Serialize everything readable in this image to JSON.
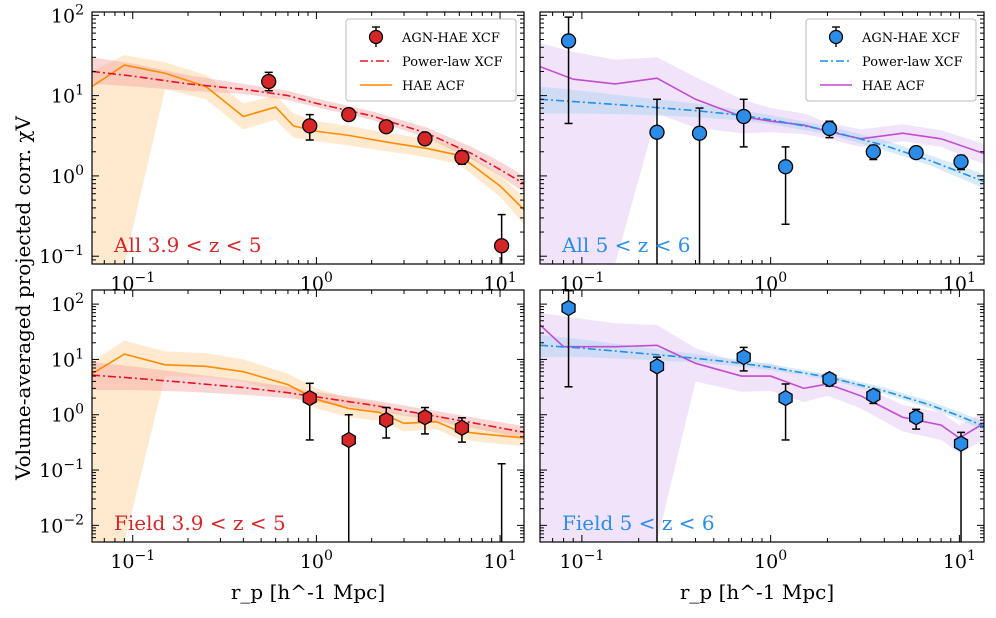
{
  "figure": {
    "ylabel": "Volume-averaged projected corr. χV",
    "xlabel": "r_p [h^-1 Mpc]"
  },
  "colors": {
    "red_points": "#d62728",
    "red_line": "#e8102a",
    "red_band": "#f4a6a0",
    "orange_line": "#ff8c00",
    "orange_band": "#ffd9a8",
    "blue_points": "#2b8de8",
    "blue_line": "#1f8fea",
    "blue_band": "#a9d3f2",
    "purple_line": "#c24bd2",
    "purple_band": "#e6cdf5"
  },
  "chart_data": [
    {
      "type": "scatter",
      "panel": "All 3.9<z<5",
      "label_prefix": "All",
      "label_range": "3.9 < z < 5",
      "xscale": "log",
      "yscale": "log",
      "xlim": [
        0.06,
        13.5
      ],
      "ylim": [
        0.08,
        110
      ],
      "xticks": [
        0.1,
        1,
        10
      ],
      "yticks": [
        0.1,
        1,
        10,
        100
      ],
      "legend": {
        "placement": "top-right",
        "entries": [
          "AGN-HAE XCF",
          "Power-law XCF",
          "HAE ACF"
        ]
      },
      "series": [
        {
          "name": "AGN-HAE XCF",
          "kind": "points",
          "marker": "circle",
          "x": [
            0.55,
            0.92,
            1.5,
            2.4,
            3.9,
            6.2,
            10.2
          ],
          "y": [
            15,
            4.2,
            5.8,
            4.1,
            2.9,
            1.7,
            0.135
          ],
          "ylo": [
            11.5,
            2.8,
            5.0,
            3.6,
            2.5,
            1.4,
            0.08
          ],
          "yhi": [
            19.5,
            5.8,
            6.8,
            4.7,
            3.4,
            2.05,
            0.33
          ]
        },
        {
          "name": "Power-law XCF",
          "kind": "line",
          "style": "dashdot",
          "x": [
            0.06,
            0.1,
            0.2,
            0.4,
            0.7,
            1,
            2,
            4,
            7,
            10,
            13.5
          ],
          "y": [
            20,
            17.5,
            14,
            12,
            10,
            8,
            5.6,
            3.4,
            1.9,
            1.2,
            0.8
          ],
          "band_lo": [
            14,
            13,
            11.5,
            10.5,
            8.8,
            7.2,
            5,
            3,
            1.6,
            1.0,
            0.62
          ],
          "band_hi": [
            30,
            25,
            18,
            14,
            11.5,
            9.2,
            6.4,
            4,
            2.3,
            1.5,
            1.0
          ]
        },
        {
          "name": "HAE ACF",
          "kind": "line",
          "style": "solid",
          "x": [
            0.06,
            0.09,
            0.15,
            0.25,
            0.4,
            0.6,
            0.75,
            1,
            1.5,
            2.5,
            4,
            6,
            10,
            13.5
          ],
          "y": [
            13,
            24,
            19,
            13,
            5.5,
            7.2,
            4.2,
            3.6,
            3.2,
            2.6,
            2.2,
            1.8,
            0.75,
            0.38
          ],
          "band_lo": [
            0.08,
            0.08,
            12,
            9,
            3.8,
            5,
            3.0,
            2.7,
            2.4,
            2.0,
            1.7,
            1.4,
            0.55,
            0.25
          ],
          "band_hi": [
            20,
            32,
            26,
            18,
            8,
            10,
            6,
            4.8,
            4.2,
            3.4,
            2.9,
            2.3,
            1.0,
            0.55
          ]
        }
      ]
    },
    {
      "type": "scatter",
      "panel": "All 5<z<6",
      "label_prefix": "All",
      "label_range": "5 < z < 6",
      "xscale": "log",
      "yscale": "log",
      "xlim": [
        0.06,
        13.5
      ],
      "ylim": [
        0.08,
        110
      ],
      "xticks": [
        0.1,
        1,
        10
      ],
      "yticks": [
        0.1,
        1,
        10,
        100
      ],
      "legend": {
        "placement": "top-right",
        "entries": [
          "AGN-HAE XCF",
          "Power-law XCF",
          "HAE ACF"
        ]
      },
      "series": [
        {
          "name": "AGN-HAE XCF",
          "kind": "points",
          "marker": "circle",
          "x": [
            0.085,
            0.25,
            0.42,
            0.72,
            1.2,
            2.05,
            3.5,
            5.9,
            10.2
          ],
          "y": [
            48,
            3.5,
            3.4,
            5.5,
            1.3,
            3.9,
            2.0,
            1.95,
            1.5
          ],
          "ylo": [
            4.5,
            0.08,
            0.08,
            2.3,
            0.25,
            3.0,
            1.6,
            1.7,
            1.2
          ],
          "yhi": [
            95,
            9,
            7,
            9,
            2.3,
            4.8,
            2.4,
            2.2,
            1.8
          ]
        },
        {
          "name": "Power-law XCF",
          "kind": "line",
          "style": "dashdot",
          "x": [
            0.06,
            0.1,
            0.2,
            0.4,
            0.7,
            1,
            2,
            4,
            7,
            10,
            13.5
          ],
          "y": [
            9,
            8.3,
            7.4,
            6.5,
            5.7,
            5,
            3.7,
            2.4,
            1.55,
            1.12,
            0.85
          ],
          "band_lo": [
            6,
            6,
            5.8,
            5.4,
            4.9,
            4.4,
            3.3,
            2.1,
            1.35,
            0.95,
            0.7
          ],
          "band_hi": [
            13,
            11.5,
            9.5,
            8,
            6.6,
            5.7,
            4.2,
            2.8,
            1.8,
            1.35,
            1.05
          ]
        },
        {
          "name": "HAE ACF",
          "kind": "line",
          "style": "solid",
          "x": [
            0.06,
            0.09,
            0.15,
            0.25,
            0.4,
            0.7,
            1,
            1.5,
            2,
            3,
            5,
            8,
            13.5
          ],
          "y": [
            23,
            16,
            14,
            16.5,
            9,
            5.5,
            4.8,
            4.3,
            3.6,
            2.9,
            3.4,
            2.9,
            1.9
          ],
          "band_lo": [
            0.08,
            0.08,
            0.08,
            6,
            4,
            3.4,
            3.5,
            3.3,
            2.9,
            2.3,
            2.7,
            2.3,
            1.4
          ],
          "band_hi": [
            45,
            35,
            28,
            30,
            17,
            9,
            7,
            6,
            4.6,
            3.8,
            4.4,
            3.7,
            2.5
          ]
        }
      ]
    },
    {
      "type": "scatter",
      "panel": "Field 3.9<z<5",
      "label_prefix": "Field",
      "label_range": "3.9 < z < 5",
      "xscale": "log",
      "yscale": "log",
      "xlim": [
        0.06,
        13.5
      ],
      "ylim": [
        0.005,
        180
      ],
      "xticks": [
        0.1,
        1,
        10
      ],
      "yticks": [
        0.01,
        0.1,
        1,
        10,
        100
      ],
      "series": [
        {
          "name": "AGN-HAE XCF",
          "kind": "points",
          "marker": "hexagon",
          "x": [
            0.92,
            1.5,
            2.4,
            3.9,
            6.2,
            10.2
          ],
          "y": [
            2.0,
            0.35,
            0.8,
            0.9,
            0.58,
            0.005
          ],
          "ylo": [
            0.35,
            0.005,
            0.38,
            0.45,
            0.32,
            0.005
          ],
          "yhi": [
            3.7,
            1.0,
            1.35,
            1.35,
            0.88,
            0.13
          ]
        },
        {
          "name": "Power-law XCF",
          "kind": "line",
          "style": "dashdot",
          "x": [
            0.06,
            0.1,
            0.2,
            0.4,
            0.7,
            1,
            2,
            4,
            7,
            10,
            13.5
          ],
          "y": [
            5.2,
            4.6,
            3.8,
            3.1,
            2.5,
            2.1,
            1.5,
            1.0,
            0.72,
            0.58,
            0.48
          ],
          "band_lo": [
            2.8,
            2.8,
            2.6,
            2.3,
            2.0,
            1.7,
            1.2,
            0.82,
            0.58,
            0.46,
            0.37
          ],
          "band_hi": [
            9,
            7.5,
            5.6,
            4.2,
            3.2,
            2.6,
            1.85,
            1.25,
            0.9,
            0.74,
            0.62
          ]
        },
        {
          "name": "HAE ACF",
          "kind": "line",
          "style": "solid",
          "x": [
            0.06,
            0.09,
            0.15,
            0.25,
            0.4,
            0.7,
            1,
            1.5,
            2.2,
            3,
            4.5,
            6,
            8,
            13.5
          ],
          "y": [
            5.5,
            12.5,
            8,
            7.5,
            6,
            3.5,
            1.9,
            1.3,
            1.1,
            0.7,
            0.75,
            0.5,
            0.45,
            0.38
          ],
          "band_lo": [
            0.005,
            0.005,
            5,
            4.8,
            4,
            2.4,
            1.3,
            0.9,
            0.78,
            0.5,
            0.55,
            0.36,
            0.32,
            0.27
          ],
          "band_hi": [
            9,
            22,
            14,
            13,
            10,
            5.5,
            3,
            2,
            1.6,
            1.0,
            1.05,
            0.72,
            0.62,
            0.52
          ]
        }
      ]
    },
    {
      "type": "scatter",
      "panel": "Field 5<z<6",
      "label_prefix": "Field",
      "label_range": "5 < z < 6",
      "xscale": "log",
      "yscale": "log",
      "xlim": [
        0.06,
        13.5
      ],
      "ylim": [
        0.005,
        180
      ],
      "xticks": [
        0.1,
        1,
        10
      ],
      "yticks": [
        0.01,
        0.1,
        1,
        10,
        100
      ],
      "series": [
        {
          "name": "AGN-HAE XCF",
          "kind": "points",
          "marker": "hexagon",
          "x": [
            0.085,
            0.25,
            0.72,
            1.2,
            2.05,
            3.5,
            5.9,
            10.2
          ],
          "y": [
            85,
            7.5,
            11,
            2.0,
            4.4,
            2.2,
            0.9,
            0.3
          ],
          "ylo": [
            3.2,
            0.005,
            6.2,
            0.35,
            3.3,
            1.6,
            0.55,
            0.005
          ],
          "yhi": [
            175,
            11,
            16.5,
            3.6,
            5.6,
            2.8,
            1.25,
            0.48
          ]
        },
        {
          "name": "Power-law XCF",
          "kind": "line",
          "style": "dashdot",
          "x": [
            0.06,
            0.1,
            0.2,
            0.4,
            0.7,
            1,
            2,
            4,
            7,
            10,
            13.5
          ],
          "y": [
            18,
            16,
            13,
            10.5,
            8.5,
            7.2,
            4.8,
            2.7,
            1.5,
            0.95,
            0.62
          ],
          "band_lo": [
            11,
            11,
            10,
            8.8,
            7.4,
            6.4,
            4.3,
            2.4,
            1.3,
            0.82,
            0.52
          ],
          "band_hi": [
            28,
            23,
            17,
            12.5,
            9.8,
            8.2,
            5.4,
            3.1,
            1.75,
            1.12,
            0.75
          ]
        },
        {
          "name": "HAE ACF",
          "kind": "line",
          "style": "solid",
          "x": [
            0.06,
            0.08,
            0.15,
            0.25,
            0.4,
            0.7,
            1,
            1.5,
            2,
            3,
            5,
            8,
            10,
            13.5
          ],
          "y": [
            42,
            17,
            17,
            18,
            8.5,
            5,
            5,
            3.0,
            3.6,
            2.2,
            0.9,
            0.65,
            0.38,
            0.7
          ],
          "band_lo": [
            0.005,
            0.005,
            0.005,
            0.005,
            4,
            2.6,
            2.7,
            1.7,
            2.2,
            1.3,
            0.5,
            0.35,
            0.2,
            0.35
          ],
          "band_hi": [
            70,
            60,
            45,
            42,
            16,
            8.5,
            8.5,
            5,
            5.5,
            3.4,
            1.5,
            1.1,
            0.65,
            1.1
          ]
        }
      ]
    }
  ]
}
